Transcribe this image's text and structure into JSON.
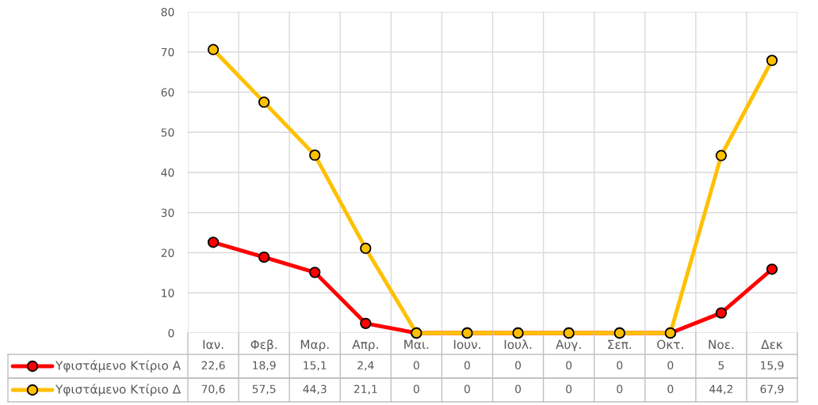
{
  "chart_data": {
    "type": "line",
    "categories": [
      "Ιαν.",
      "Φεβ.",
      "Μαρ.",
      "Απρ.",
      "Μαι.",
      "Ιουν.",
      "Ιουλ.",
      "Αυγ.",
      "Σεπ.",
      "Οκτ.",
      "Νοε.",
      "Δεκ"
    ],
    "series": [
      {
        "name": "Υφιστάμενο Κτίριο Α",
        "color": "#ff0000",
        "values": [
          22.6,
          18.9,
          15.1,
          2.4,
          0,
          0,
          0,
          0,
          0,
          0,
          5,
          15.9
        ],
        "value_labels": [
          "22,6",
          "18,9",
          "15,1",
          "2,4",
          "0",
          "0",
          "0",
          "0",
          "0",
          "0",
          "5",
          "15,9"
        ]
      },
      {
        "name": "Υφιστάμενο Κτίριο Δ",
        "color": "#ffc000",
        "values": [
          70.6,
          57.5,
          44.3,
          21.1,
          0,
          0,
          0,
          0,
          0,
          0,
          44.2,
          67.9
        ],
        "value_labels": [
          "70,6",
          "57,5",
          "44,3",
          "21,1",
          "0",
          "0",
          "0",
          "0",
          "0",
          "0",
          "44,2",
          "67,9"
        ]
      }
    ],
    "ylim": [
      0,
      80
    ],
    "yticks": [
      0,
      10,
      20,
      30,
      40,
      50,
      60,
      70,
      80
    ],
    "grid": true,
    "marker": "circle",
    "line_style": "solid",
    "legend": "bottom"
  }
}
